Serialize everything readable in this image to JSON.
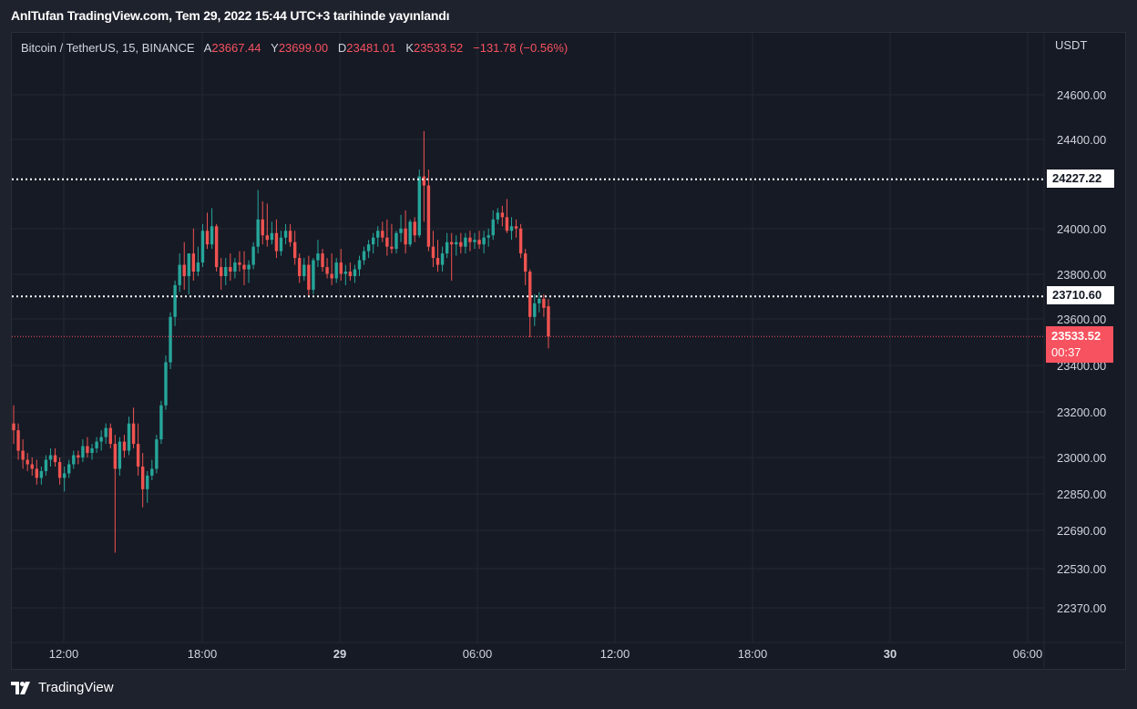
{
  "header": {
    "title": "AnlTufan TradingView.com, Tem 29, 2022 15:44 UTC+3 tarihinde yayınlandı"
  },
  "legend": {
    "symbol": "Bitcoin / TetherUS, 15, BINANCE",
    "open_label": "A",
    "open": "23667.44",
    "high_label": "Y",
    "high": "23699.00",
    "low_label": "D",
    "low": "23481.01",
    "close_label": "K",
    "close": "23533.52",
    "change": "−131.78 (−0.56%)"
  },
  "axis": {
    "currency": "USDT",
    "y_ticks": [
      "24600.00",
      "24400.00",
      "24000.00",
      "23800.00",
      "23600.00",
      "23400.00",
      "23200.00",
      "23000.00",
      "22850.00",
      "22690.00",
      "22530.00",
      "22370.00"
    ],
    "x_ticks": [
      "12:00",
      "18:00",
      "29",
      "06:00",
      "12:00",
      "18:00",
      "30",
      "06:00"
    ]
  },
  "levels": {
    "resistance": "24227.22",
    "support": "23710.60",
    "last_price": "23533.52",
    "countdown": "00:37"
  },
  "footer": {
    "brand": "TradingView"
  },
  "colors": {
    "up": "#26a69a",
    "down": "#ef5350",
    "background": "#161a25",
    "grid": "#242833"
  },
  "chart_data": {
    "type": "candlestick",
    "symbol": "BTCUSDT",
    "interval": "15",
    "ylim": [
      22300,
      24750
    ],
    "candles": [
      {
        "o": 23150,
        "h": 23230,
        "l": 23060,
        "c": 23120
      },
      {
        "o": 23120,
        "h": 23150,
        "l": 22990,
        "c": 23030
      },
      {
        "o": 23030,
        "h": 23080,
        "l": 22950,
        "c": 22990
      },
      {
        "o": 22990,
        "h": 23020,
        "l": 22940,
        "c": 22970
      },
      {
        "o": 22970,
        "h": 23000,
        "l": 22920,
        "c": 22950
      },
      {
        "o": 22950,
        "h": 22990,
        "l": 22880,
        "c": 22910
      },
      {
        "o": 22910,
        "h": 22960,
        "l": 22880,
        "c": 22940
      },
      {
        "o": 22940,
        "h": 23010,
        "l": 22920,
        "c": 22990
      },
      {
        "o": 22990,
        "h": 23040,
        "l": 22960,
        "c": 23010
      },
      {
        "o": 23010,
        "h": 23040,
        "l": 22960,
        "c": 22980
      },
      {
        "o": 22980,
        "h": 23000,
        "l": 22880,
        "c": 22910
      },
      {
        "o": 22910,
        "h": 22960,
        "l": 22850,
        "c": 22930
      },
      {
        "o": 22930,
        "h": 22990,
        "l": 22910,
        "c": 22970
      },
      {
        "o": 22970,
        "h": 23030,
        "l": 22950,
        "c": 23010
      },
      {
        "o": 23010,
        "h": 23030,
        "l": 22970,
        "c": 23000
      },
      {
        "o": 23000,
        "h": 23080,
        "l": 22980,
        "c": 23050
      },
      {
        "o": 23050,
        "h": 23090,
        "l": 23000,
        "c": 23020
      },
      {
        "o": 23020,
        "h": 23060,
        "l": 22990,
        "c": 23040
      },
      {
        "o": 23040,
        "h": 23090,
        "l": 23020,
        "c": 23070
      },
      {
        "o": 23070,
        "h": 23120,
        "l": 23030,
        "c": 23090
      },
      {
        "o": 23090,
        "h": 23150,
        "l": 23060,
        "c": 23130
      },
      {
        "o": 23130,
        "h": 23150,
        "l": 23040,
        "c": 23060
      },
      {
        "o": 23060,
        "h": 23100,
        "l": 22580,
        "c": 22950
      },
      {
        "o": 22950,
        "h": 23090,
        "l": 22920,
        "c": 23070
      },
      {
        "o": 23070,
        "h": 23100,
        "l": 23000,
        "c": 23030
      },
      {
        "o": 23030,
        "h": 23180,
        "l": 23010,
        "c": 23150
      },
      {
        "o": 23150,
        "h": 23220,
        "l": 23040,
        "c": 23060
      },
      {
        "o": 23060,
        "h": 23150,
        "l": 22920,
        "c": 22960
      },
      {
        "o": 22960,
        "h": 23020,
        "l": 22780,
        "c": 22860
      },
      {
        "o": 22860,
        "h": 22940,
        "l": 22800,
        "c": 22920
      },
      {
        "o": 22920,
        "h": 22990,
        "l": 22900,
        "c": 22950
      },
      {
        "o": 22950,
        "h": 23100,
        "l": 22930,
        "c": 23080
      },
      {
        "o": 23080,
        "h": 23250,
        "l": 23060,
        "c": 23230
      },
      {
        "o": 23230,
        "h": 23450,
        "l": 23210,
        "c": 23420
      },
      {
        "o": 23420,
        "h": 23640,
        "l": 23390,
        "c": 23620
      },
      {
        "o": 23620,
        "h": 23780,
        "l": 23580,
        "c": 23760
      },
      {
        "o": 23760,
        "h": 23900,
        "l": 23730,
        "c": 23850
      },
      {
        "o": 23850,
        "h": 23950,
        "l": 23740,
        "c": 23800
      },
      {
        "o": 23800,
        "h": 23900,
        "l": 23720,
        "c": 23900
      },
      {
        "o": 23900,
        "h": 24010,
        "l": 23780,
        "c": 23820
      },
      {
        "o": 23820,
        "h": 23930,
        "l": 23800,
        "c": 23860
      },
      {
        "o": 23860,
        "h": 24030,
        "l": 23840,
        "c": 24000
      },
      {
        "o": 24000,
        "h": 24080,
        "l": 23920,
        "c": 23940
      },
      {
        "o": 23940,
        "h": 24100,
        "l": 23920,
        "c": 24020
      },
      {
        "o": 24020,
        "h": 24030,
        "l": 23820,
        "c": 23840
      },
      {
        "o": 23840,
        "h": 23880,
        "l": 23740,
        "c": 23800
      },
      {
        "o": 23800,
        "h": 23880,
        "l": 23760,
        "c": 23840
      },
      {
        "o": 23840,
        "h": 23900,
        "l": 23780,
        "c": 23820
      },
      {
        "o": 23820,
        "h": 23880,
        "l": 23790,
        "c": 23860
      },
      {
        "o": 23860,
        "h": 23910,
        "l": 23820,
        "c": 23850
      },
      {
        "o": 23850,
        "h": 23910,
        "l": 23760,
        "c": 23830
      },
      {
        "o": 23830,
        "h": 23870,
        "l": 23770,
        "c": 23850
      },
      {
        "o": 23850,
        "h": 23950,
        "l": 23830,
        "c": 23930
      },
      {
        "o": 23930,
        "h": 24180,
        "l": 23900,
        "c": 24050
      },
      {
        "o": 24050,
        "h": 24130,
        "l": 23940,
        "c": 23980
      },
      {
        "o": 23980,
        "h": 24120,
        "l": 23930,
        "c": 23960
      },
      {
        "o": 23960,
        "h": 24040,
        "l": 23940,
        "c": 23990
      },
      {
        "o": 23990,
        "h": 24050,
        "l": 23880,
        "c": 23910
      },
      {
        "o": 23910,
        "h": 24000,
        "l": 23890,
        "c": 23970
      },
      {
        "o": 23970,
        "h": 24030,
        "l": 23940,
        "c": 24000
      },
      {
        "o": 24000,
        "h": 24030,
        "l": 23930,
        "c": 23950
      },
      {
        "o": 23950,
        "h": 24000,
        "l": 23850,
        "c": 23880
      },
      {
        "o": 23880,
        "h": 23900,
        "l": 23770,
        "c": 23800
      },
      {
        "o": 23800,
        "h": 23880,
        "l": 23780,
        "c": 23850
      },
      {
        "o": 23850,
        "h": 23890,
        "l": 23710,
        "c": 23740
      },
      {
        "o": 23740,
        "h": 23880,
        "l": 23720,
        "c": 23870
      },
      {
        "o": 23870,
        "h": 23960,
        "l": 23840,
        "c": 23900
      },
      {
        "o": 23900,
        "h": 23920,
        "l": 23820,
        "c": 23840
      },
      {
        "o": 23840,
        "h": 23880,
        "l": 23790,
        "c": 23810
      },
      {
        "o": 23810,
        "h": 23900,
        "l": 23760,
        "c": 23790
      },
      {
        "o": 23790,
        "h": 23880,
        "l": 23770,
        "c": 23860
      },
      {
        "o": 23860,
        "h": 23920,
        "l": 23780,
        "c": 23810
      },
      {
        "o": 23810,
        "h": 23850,
        "l": 23760,
        "c": 23820
      },
      {
        "o": 23820,
        "h": 23860,
        "l": 23780,
        "c": 23800
      },
      {
        "o": 23800,
        "h": 23850,
        "l": 23770,
        "c": 23830
      },
      {
        "o": 23830,
        "h": 23890,
        "l": 23800,
        "c": 23870
      },
      {
        "o": 23870,
        "h": 23930,
        "l": 23850,
        "c": 23910
      },
      {
        "o": 23910,
        "h": 23960,
        "l": 23880,
        "c": 23940
      },
      {
        "o": 23940,
        "h": 23990,
        "l": 23900,
        "c": 23970
      },
      {
        "o": 23970,
        "h": 24020,
        "l": 23930,
        "c": 24000
      },
      {
        "o": 24000,
        "h": 24040,
        "l": 23950,
        "c": 23970
      },
      {
        "o": 23970,
        "h": 24050,
        "l": 23890,
        "c": 23930
      },
      {
        "o": 23930,
        "h": 24030,
        "l": 23900,
        "c": 23920
      },
      {
        "o": 23920,
        "h": 24000,
        "l": 23900,
        "c": 23990
      },
      {
        "o": 23990,
        "h": 24070,
        "l": 23950,
        "c": 24010
      },
      {
        "o": 24010,
        "h": 24090,
        "l": 23900,
        "c": 23940
      },
      {
        "o": 23940,
        "h": 24050,
        "l": 23930,
        "c": 24040
      },
      {
        "o": 24040,
        "h": 24060,
        "l": 23950,
        "c": 23980
      },
      {
        "o": 23980,
        "h": 24270,
        "l": 23970,
        "c": 24240
      },
      {
        "o": 24240,
        "h": 24440,
        "l": 24040,
        "c": 24200
      },
      {
        "o": 24200,
        "h": 24270,
        "l": 23910,
        "c": 23930
      },
      {
        "o": 23930,
        "h": 24000,
        "l": 23840,
        "c": 23880
      },
      {
        "o": 23880,
        "h": 23960,
        "l": 23820,
        "c": 23850
      },
      {
        "o": 23850,
        "h": 23930,
        "l": 23820,
        "c": 23900
      },
      {
        "o": 23900,
        "h": 23990,
        "l": 23880,
        "c": 23950
      },
      {
        "o": 23950,
        "h": 23990,
        "l": 23780,
        "c": 23940
      },
      {
        "o": 23940,
        "h": 23980,
        "l": 23890,
        "c": 23950
      },
      {
        "o": 23950,
        "h": 23990,
        "l": 23900,
        "c": 23930
      },
      {
        "o": 23930,
        "h": 23990,
        "l": 23900,
        "c": 23970
      },
      {
        "o": 23970,
        "h": 24000,
        "l": 23910,
        "c": 23950
      },
      {
        "o": 23950,
        "h": 23990,
        "l": 23920,
        "c": 23960
      },
      {
        "o": 23960,
        "h": 24000,
        "l": 23920,
        "c": 23940
      },
      {
        "o": 23940,
        "h": 24000,
        "l": 23900,
        "c": 23970
      },
      {
        "o": 23970,
        "h": 24010,
        "l": 23930,
        "c": 23980
      },
      {
        "o": 23980,
        "h": 24090,
        "l": 23960,
        "c": 24050
      },
      {
        "o": 24050,
        "h": 24100,
        "l": 24030,
        "c": 24080
      },
      {
        "o": 24080,
        "h": 24110,
        "l": 24020,
        "c": 24060
      },
      {
        "o": 24060,
        "h": 24140,
        "l": 23990,
        "c": 24000
      },
      {
        "o": 24000,
        "h": 24060,
        "l": 23960,
        "c": 24020
      },
      {
        "o": 24020,
        "h": 24050,
        "l": 23970,
        "c": 24010
      },
      {
        "o": 24010,
        "h": 24030,
        "l": 23880,
        "c": 23900
      },
      {
        "o": 23900,
        "h": 23920,
        "l": 23760,
        "c": 23820
      },
      {
        "o": 23820,
        "h": 23830,
        "l": 23530,
        "c": 23620
      },
      {
        "o": 23620,
        "h": 23720,
        "l": 23580,
        "c": 23680
      },
      {
        "o": 23680,
        "h": 23730,
        "l": 23640,
        "c": 23700
      },
      {
        "o": 23700,
        "h": 23720,
        "l": 23620,
        "c": 23660
      },
      {
        "o": 23667.44,
        "h": 23699.0,
        "l": 23481.01,
        "c": 23533.52
      }
    ]
  }
}
